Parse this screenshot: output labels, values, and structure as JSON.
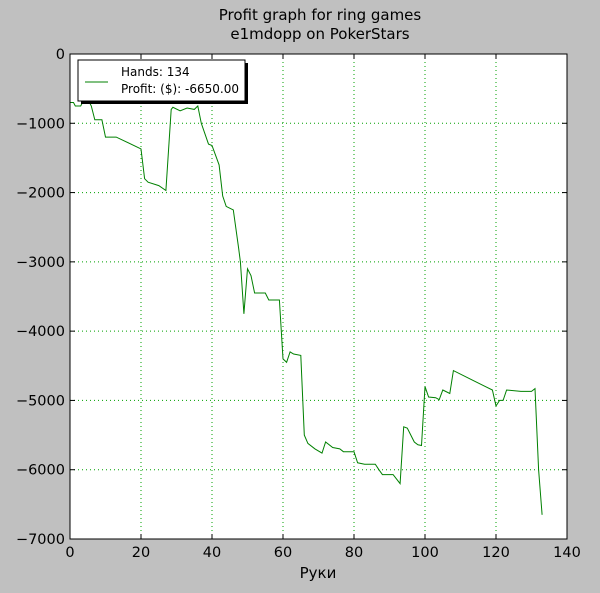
{
  "chart_data": {
    "type": "line",
    "title": "Profit graph for ring games",
    "subtitle": "e1mdopp on PokerStars",
    "xlabel": "Руки",
    "ylabel": "",
    "xlim": [
      0,
      140
    ],
    "ylim": [
      -7000,
      0
    ],
    "xticks": [
      "0",
      "20",
      "40",
      "60",
      "80",
      "100",
      "120",
      "140"
    ],
    "yticks": [
      "0",
      "−1000",
      "−2000",
      "−3000",
      "−4000",
      "−5000",
      "−6000",
      "−7000"
    ],
    "grid": true,
    "legend_position": "top-left",
    "legend": {
      "line1": "Hands: 134",
      "line2": "Profit: ($): -6650.00"
    },
    "colors": {
      "series": "#008000",
      "grid": "#00a000",
      "background": "#ffffff",
      "figure": "#c0c0c0"
    },
    "series": [
      {
        "values": [
          [
            0,
            -700
          ],
          [
            1,
            -700
          ],
          [
            1.5,
            -750
          ],
          [
            3,
            -750
          ],
          [
            4,
            -650
          ],
          [
            5,
            -650
          ],
          [
            5.5,
            -700
          ],
          [
            6,
            -750
          ],
          [
            7,
            -950
          ],
          [
            9,
            -950
          ],
          [
            10,
            -1200
          ],
          [
            13,
            -1200
          ],
          [
            20,
            -1370
          ],
          [
            21,
            -1800
          ],
          [
            22,
            -1850
          ],
          [
            25,
            -1900
          ],
          [
            27,
            -1970
          ],
          [
            28.5,
            -800
          ],
          [
            29,
            -770
          ],
          [
            31,
            -820
          ],
          [
            33,
            -780
          ],
          [
            35,
            -800
          ],
          [
            36,
            -750
          ],
          [
            37,
            -1000
          ],
          [
            39,
            -1300
          ],
          [
            40,
            -1320
          ],
          [
            42,
            -1600
          ],
          [
            43,
            -2050
          ],
          [
            44,
            -2200
          ],
          [
            46,
            -2250
          ],
          [
            47.5,
            -2800
          ],
          [
            48,
            -3000
          ],
          [
            49,
            -3750
          ],
          [
            50,
            -3100
          ],
          [
            51,
            -3200
          ],
          [
            52,
            -3450
          ],
          [
            55,
            -3450
          ],
          [
            56,
            -3550
          ],
          [
            59,
            -3550
          ],
          [
            60,
            -4400
          ],
          [
            61,
            -4450
          ],
          [
            62,
            -4300
          ],
          [
            63,
            -4330
          ],
          [
            65,
            -4350
          ],
          [
            66,
            -5500
          ],
          [
            67,
            -5620
          ],
          [
            69,
            -5700
          ],
          [
            71,
            -5760
          ],
          [
            72,
            -5600
          ],
          [
            74,
            -5680
          ],
          [
            76,
            -5700
          ],
          [
            77,
            -5740
          ],
          [
            80,
            -5740
          ],
          [
            81,
            -5900
          ],
          [
            83,
            -5920
          ],
          [
            86,
            -5920
          ],
          [
            87,
            -6000
          ],
          [
            88,
            -6070
          ],
          [
            91,
            -6070
          ],
          [
            93,
            -6200
          ],
          [
            94,
            -5380
          ],
          [
            95,
            -5400
          ],
          [
            97,
            -5600
          ],
          [
            98,
            -5640
          ],
          [
            99,
            -5650
          ],
          [
            100,
            -4800
          ],
          [
            101,
            -4950
          ],
          [
            103,
            -4960
          ],
          [
            104,
            -4990
          ],
          [
            105,
            -4850
          ],
          [
            107,
            -4900
          ],
          [
            108,
            -4570
          ],
          [
            117,
            -4800
          ],
          [
            119,
            -4850
          ],
          [
            120,
            -5080
          ],
          [
            121,
            -5000
          ],
          [
            122,
            -5000
          ],
          [
            123,
            -4850
          ],
          [
            127,
            -4870
          ],
          [
            130,
            -4870
          ],
          [
            131,
            -4830
          ],
          [
            132,
            -6000
          ],
          [
            133,
            -6650
          ]
        ]
      }
    ]
  }
}
